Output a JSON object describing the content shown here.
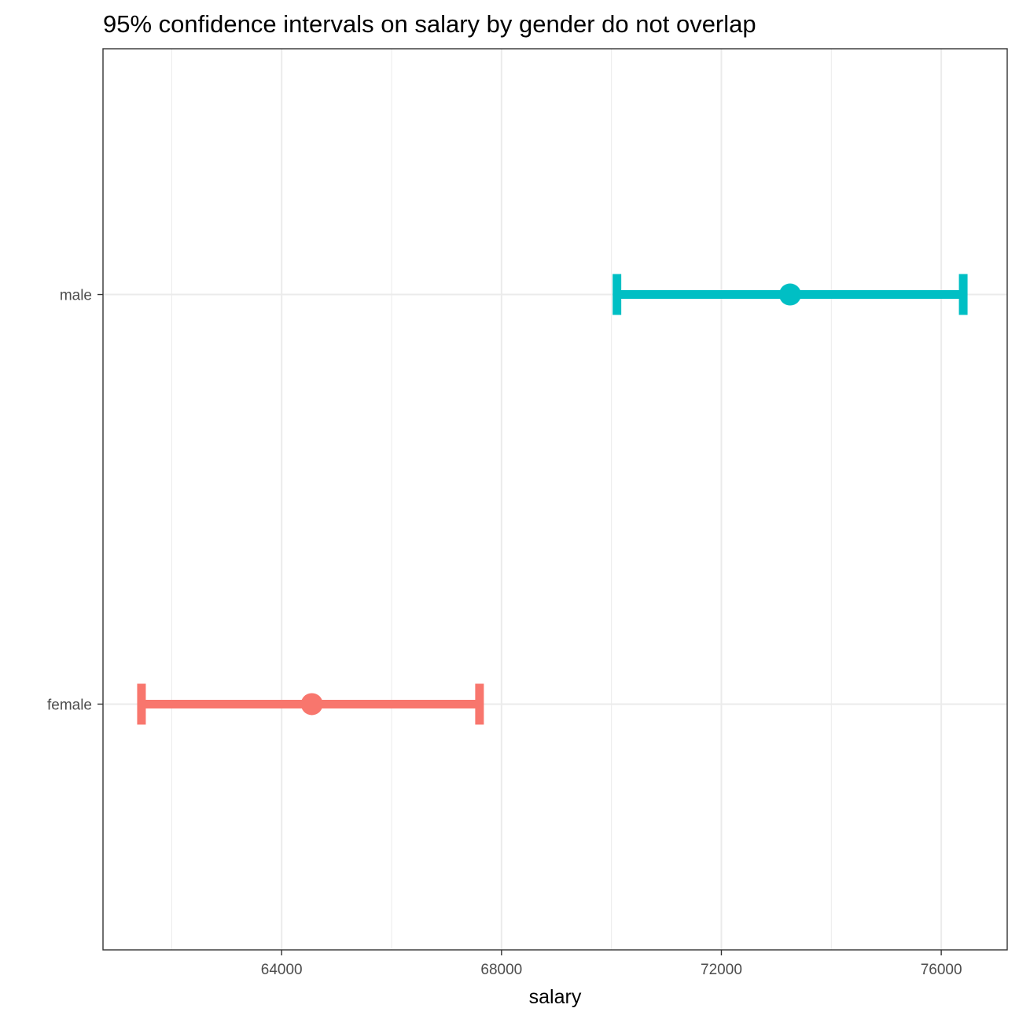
{
  "chart_data": {
    "type": "errorbar",
    "title": "95% confidence intervals on salary by gender do not overlap",
    "xlabel": "salary",
    "ylabel": "",
    "xlim": [
      60750,
      77200
    ],
    "xticks": [
      64000,
      68000,
      72000,
      76000
    ],
    "xtick_labels": [
      "64000",
      "68000",
      "72000",
      "76000"
    ],
    "x_minor_ticks": [
      62000,
      66000,
      70000,
      74000
    ],
    "categories": [
      "female",
      "male"
    ],
    "series": [
      {
        "category": "female",
        "estimate": 64550,
        "lower": 61450,
        "upper": 67600,
        "color": "#F8766D"
      },
      {
        "category": "male",
        "estimate": 73250,
        "lower": 70100,
        "upper": 76400,
        "color": "#00BFC4"
      }
    ],
    "grid": true,
    "legend": "none"
  }
}
